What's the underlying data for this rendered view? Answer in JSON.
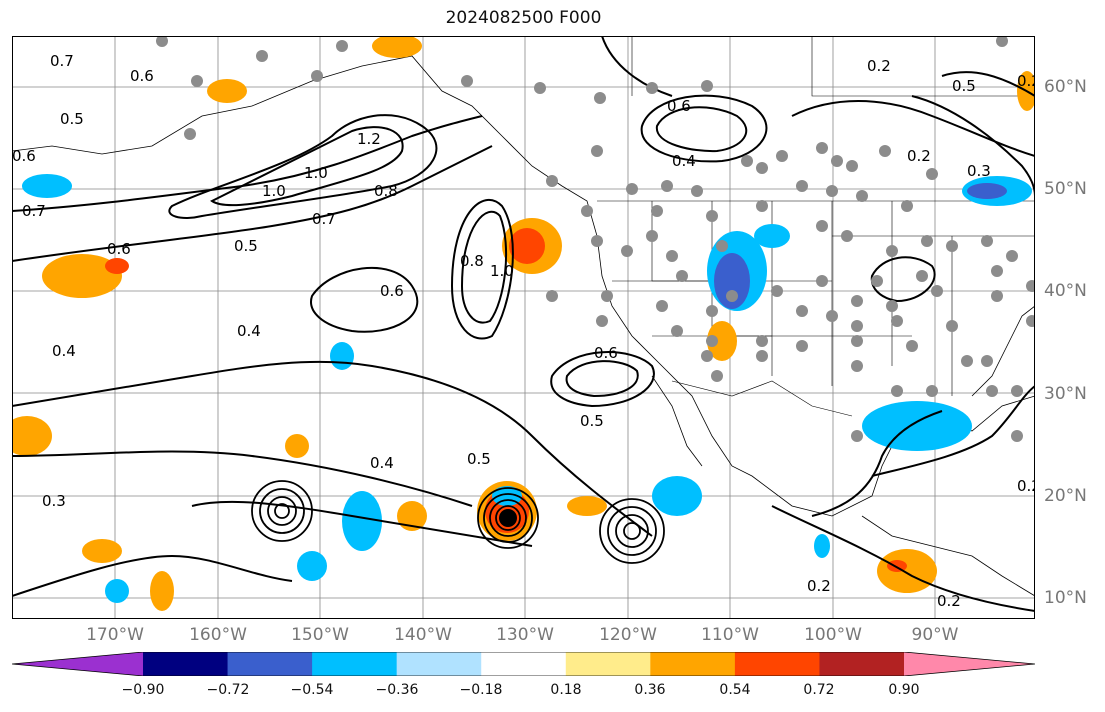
{
  "title": "2024082500 F000",
  "lat_labels": [
    "60°N",
    "50°N",
    "40°N",
    "30°N",
    "20°N",
    "10°N"
  ],
  "lon_labels": [
    "170°W",
    "160°W",
    "150°W",
    "140°W",
    "130°W",
    "120°W",
    "110°W",
    "100°W",
    "90°W"
  ],
  "colorbar": {
    "ticks": [
      "−0.90",
      "−0.72",
      "−0.54",
      "−0.36",
      "−0.18",
      "0.18",
      "0.36",
      "0.54",
      "0.72",
      "0.90"
    ],
    "colors": [
      "#9b30d0",
      "#000080",
      "#3a5fcd",
      "#00bfff",
      "#b0e2ff",
      "#ffffff",
      "#ffec8b",
      "#ffa500",
      "#ff4500",
      "#b22222",
      "#ff88aa"
    ]
  },
  "contour_labels": [
    "0.7",
    "0.6",
    "0.5",
    "0.6",
    "0.7",
    "1.2",
    "1.0",
    "1.0",
    "0.8",
    "0.7",
    "0.5",
    "0.6",
    "0.4",
    "0.4",
    "0.8",
    "1.0",
    "0.6",
    "0.6",
    "0.5",
    "0.4",
    "0.5",
    "0.3",
    "0.2",
    "0.2",
    "0.2",
    "0.6",
    "0.4",
    "0.5",
    "0.3",
    "0.2",
    "0.2",
    "0.2"
  ]
}
